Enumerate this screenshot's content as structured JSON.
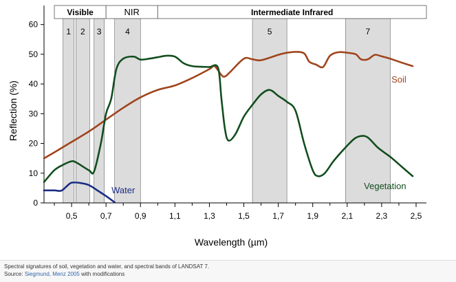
{
  "chart_data": {
    "type": "line",
    "xlabel": "Wavelength (µm)",
    "ylabel": "Reflection (%)",
    "xlim": [
      0.34,
      2.56
    ],
    "ylim": [
      0,
      62
    ],
    "x_ticks": [
      "0,5",
      "0,7",
      "0,9",
      "1,1",
      "1,3",
      "1,5",
      "1,7",
      "1,9",
      "2,1",
      "2,3",
      "2,5"
    ],
    "x_tick_values": [
      0.5,
      0.7,
      0.9,
      1.1,
      1.3,
      1.5,
      1.7,
      1.9,
      2.1,
      2.3,
      2.5
    ],
    "y_ticks": [
      "0",
      "10",
      "20",
      "30",
      "40",
      "50",
      "60"
    ],
    "y_tick_values": [
      0,
      10,
      20,
      30,
      40,
      50,
      60
    ],
    "grid": false,
    "regions": [
      {
        "label": "Visible",
        "start": 0.4,
        "end": 0.7
      },
      {
        "label": "NIR",
        "start": 0.7,
        "end": 1.0
      },
      {
        "label": "Intermediate Infrared",
        "start": 1.0,
        "end": 2.56
      }
    ],
    "bands": [
      {
        "label": "1",
        "start": 0.45,
        "end": 0.515
      },
      {
        "label": "2",
        "start": 0.525,
        "end": 0.605
      },
      {
        "label": "3",
        "start": 0.63,
        "end": 0.69
      },
      {
        "label": "4",
        "start": 0.75,
        "end": 0.9
      },
      {
        "label": "5",
        "start": 1.55,
        "end": 1.75
      },
      {
        "label": "7",
        "start": 2.09,
        "end": 2.35
      }
    ],
    "series": [
      {
        "name": "Soil",
        "color": "#a0441c",
        "label_pos": [
          2.4,
          40.5
        ],
        "points": [
          [
            0.34,
            15
          ],
          [
            0.4,
            17
          ],
          [
            0.5,
            20.5
          ],
          [
            0.6,
            24
          ],
          [
            0.7,
            28
          ],
          [
            0.8,
            32
          ],
          [
            0.9,
            35.5
          ],
          [
            1.0,
            38
          ],
          [
            1.1,
            39.5
          ],
          [
            1.2,
            42
          ],
          [
            1.3,
            45
          ],
          [
            1.33,
            46
          ],
          [
            1.37,
            43
          ],
          [
            1.39,
            42.5
          ],
          [
            1.42,
            44
          ],
          [
            1.5,
            48.5
          ],
          [
            1.55,
            48.3
          ],
          [
            1.6,
            48
          ],
          [
            1.7,
            49.8
          ],
          [
            1.75,
            50.5
          ],
          [
            1.8,
            50.8
          ],
          [
            1.85,
            50.3
          ],
          [
            1.88,
            47.5
          ],
          [
            1.92,
            46.5
          ],
          [
            1.96,
            45.7
          ],
          [
            2.0,
            49.5
          ],
          [
            2.05,
            50.7
          ],
          [
            2.1,
            50.5
          ],
          [
            2.15,
            50
          ],
          [
            2.18,
            48.3
          ],
          [
            2.22,
            48.3
          ],
          [
            2.26,
            49.8
          ],
          [
            2.3,
            49.3
          ],
          [
            2.35,
            48.5
          ],
          [
            2.4,
            47.5
          ],
          [
            2.48,
            46
          ]
        ]
      },
      {
        "name": "Vegetation",
        "color": "#124d1e",
        "label_pos": [
          2.32,
          4.6
        ],
        "points": [
          [
            0.34,
            7
          ],
          [
            0.4,
            11
          ],
          [
            0.45,
            12.8
          ],
          [
            0.5,
            14
          ],
          [
            0.53,
            13.5
          ],
          [
            0.6,
            11
          ],
          [
            0.63,
            10.5
          ],
          [
            0.67,
            20
          ],
          [
            0.7,
            30
          ],
          [
            0.73,
            35
          ],
          [
            0.76,
            45
          ],
          [
            0.8,
            48.5
          ],
          [
            0.86,
            49.2
          ],
          [
            0.9,
            48.2
          ],
          [
            0.95,
            48.5
          ],
          [
            1.0,
            49
          ],
          [
            1.05,
            49.5
          ],
          [
            1.1,
            49.2
          ],
          [
            1.15,
            47
          ],
          [
            1.2,
            46
          ],
          [
            1.25,
            45.8
          ],
          [
            1.3,
            45.7
          ],
          [
            1.35,
            45.5
          ],
          [
            1.37,
            35
          ],
          [
            1.39,
            25
          ],
          [
            1.41,
            21
          ],
          [
            1.45,
            23
          ],
          [
            1.5,
            29
          ],
          [
            1.55,
            33
          ],
          [
            1.6,
            36.5
          ],
          [
            1.65,
            38
          ],
          [
            1.7,
            36
          ],
          [
            1.75,
            34
          ],
          [
            1.8,
            31
          ],
          [
            1.85,
            20
          ],
          [
            1.9,
            11
          ],
          [
            1.93,
            9
          ],
          [
            1.97,
            10
          ],
          [
            2.02,
            14
          ],
          [
            2.08,
            18
          ],
          [
            2.14,
            21.5
          ],
          [
            2.18,
            22.5
          ],
          [
            2.22,
            22
          ],
          [
            2.28,
            18.5
          ],
          [
            2.35,
            15.5
          ],
          [
            2.42,
            12
          ],
          [
            2.48,
            9
          ]
        ]
      },
      {
        "name": "Water",
        "color": "#1a2c84",
        "label_pos": [
          0.8,
          3.2
        ],
        "points": [
          [
            0.34,
            4.2
          ],
          [
            0.4,
            4.2
          ],
          [
            0.44,
            4.1
          ],
          [
            0.47,
            5.5
          ],
          [
            0.5,
            6.8
          ],
          [
            0.55,
            6.7
          ],
          [
            0.6,
            6
          ],
          [
            0.65,
            4.2
          ],
          [
            0.7,
            2.3
          ],
          [
            0.75,
            0.2
          ]
        ]
      }
    ]
  },
  "caption": {
    "line1": "Spectral signatures of soil, vegetation and water, and spectral bands of LANDSAT 7.",
    "source_label": "Source:",
    "source_link": "Siegmund, Menz 2005",
    "source_suffix": "with modifications"
  },
  "colors": {
    "band_fill": "#dcdcdc",
    "axis": "#000000"
  }
}
